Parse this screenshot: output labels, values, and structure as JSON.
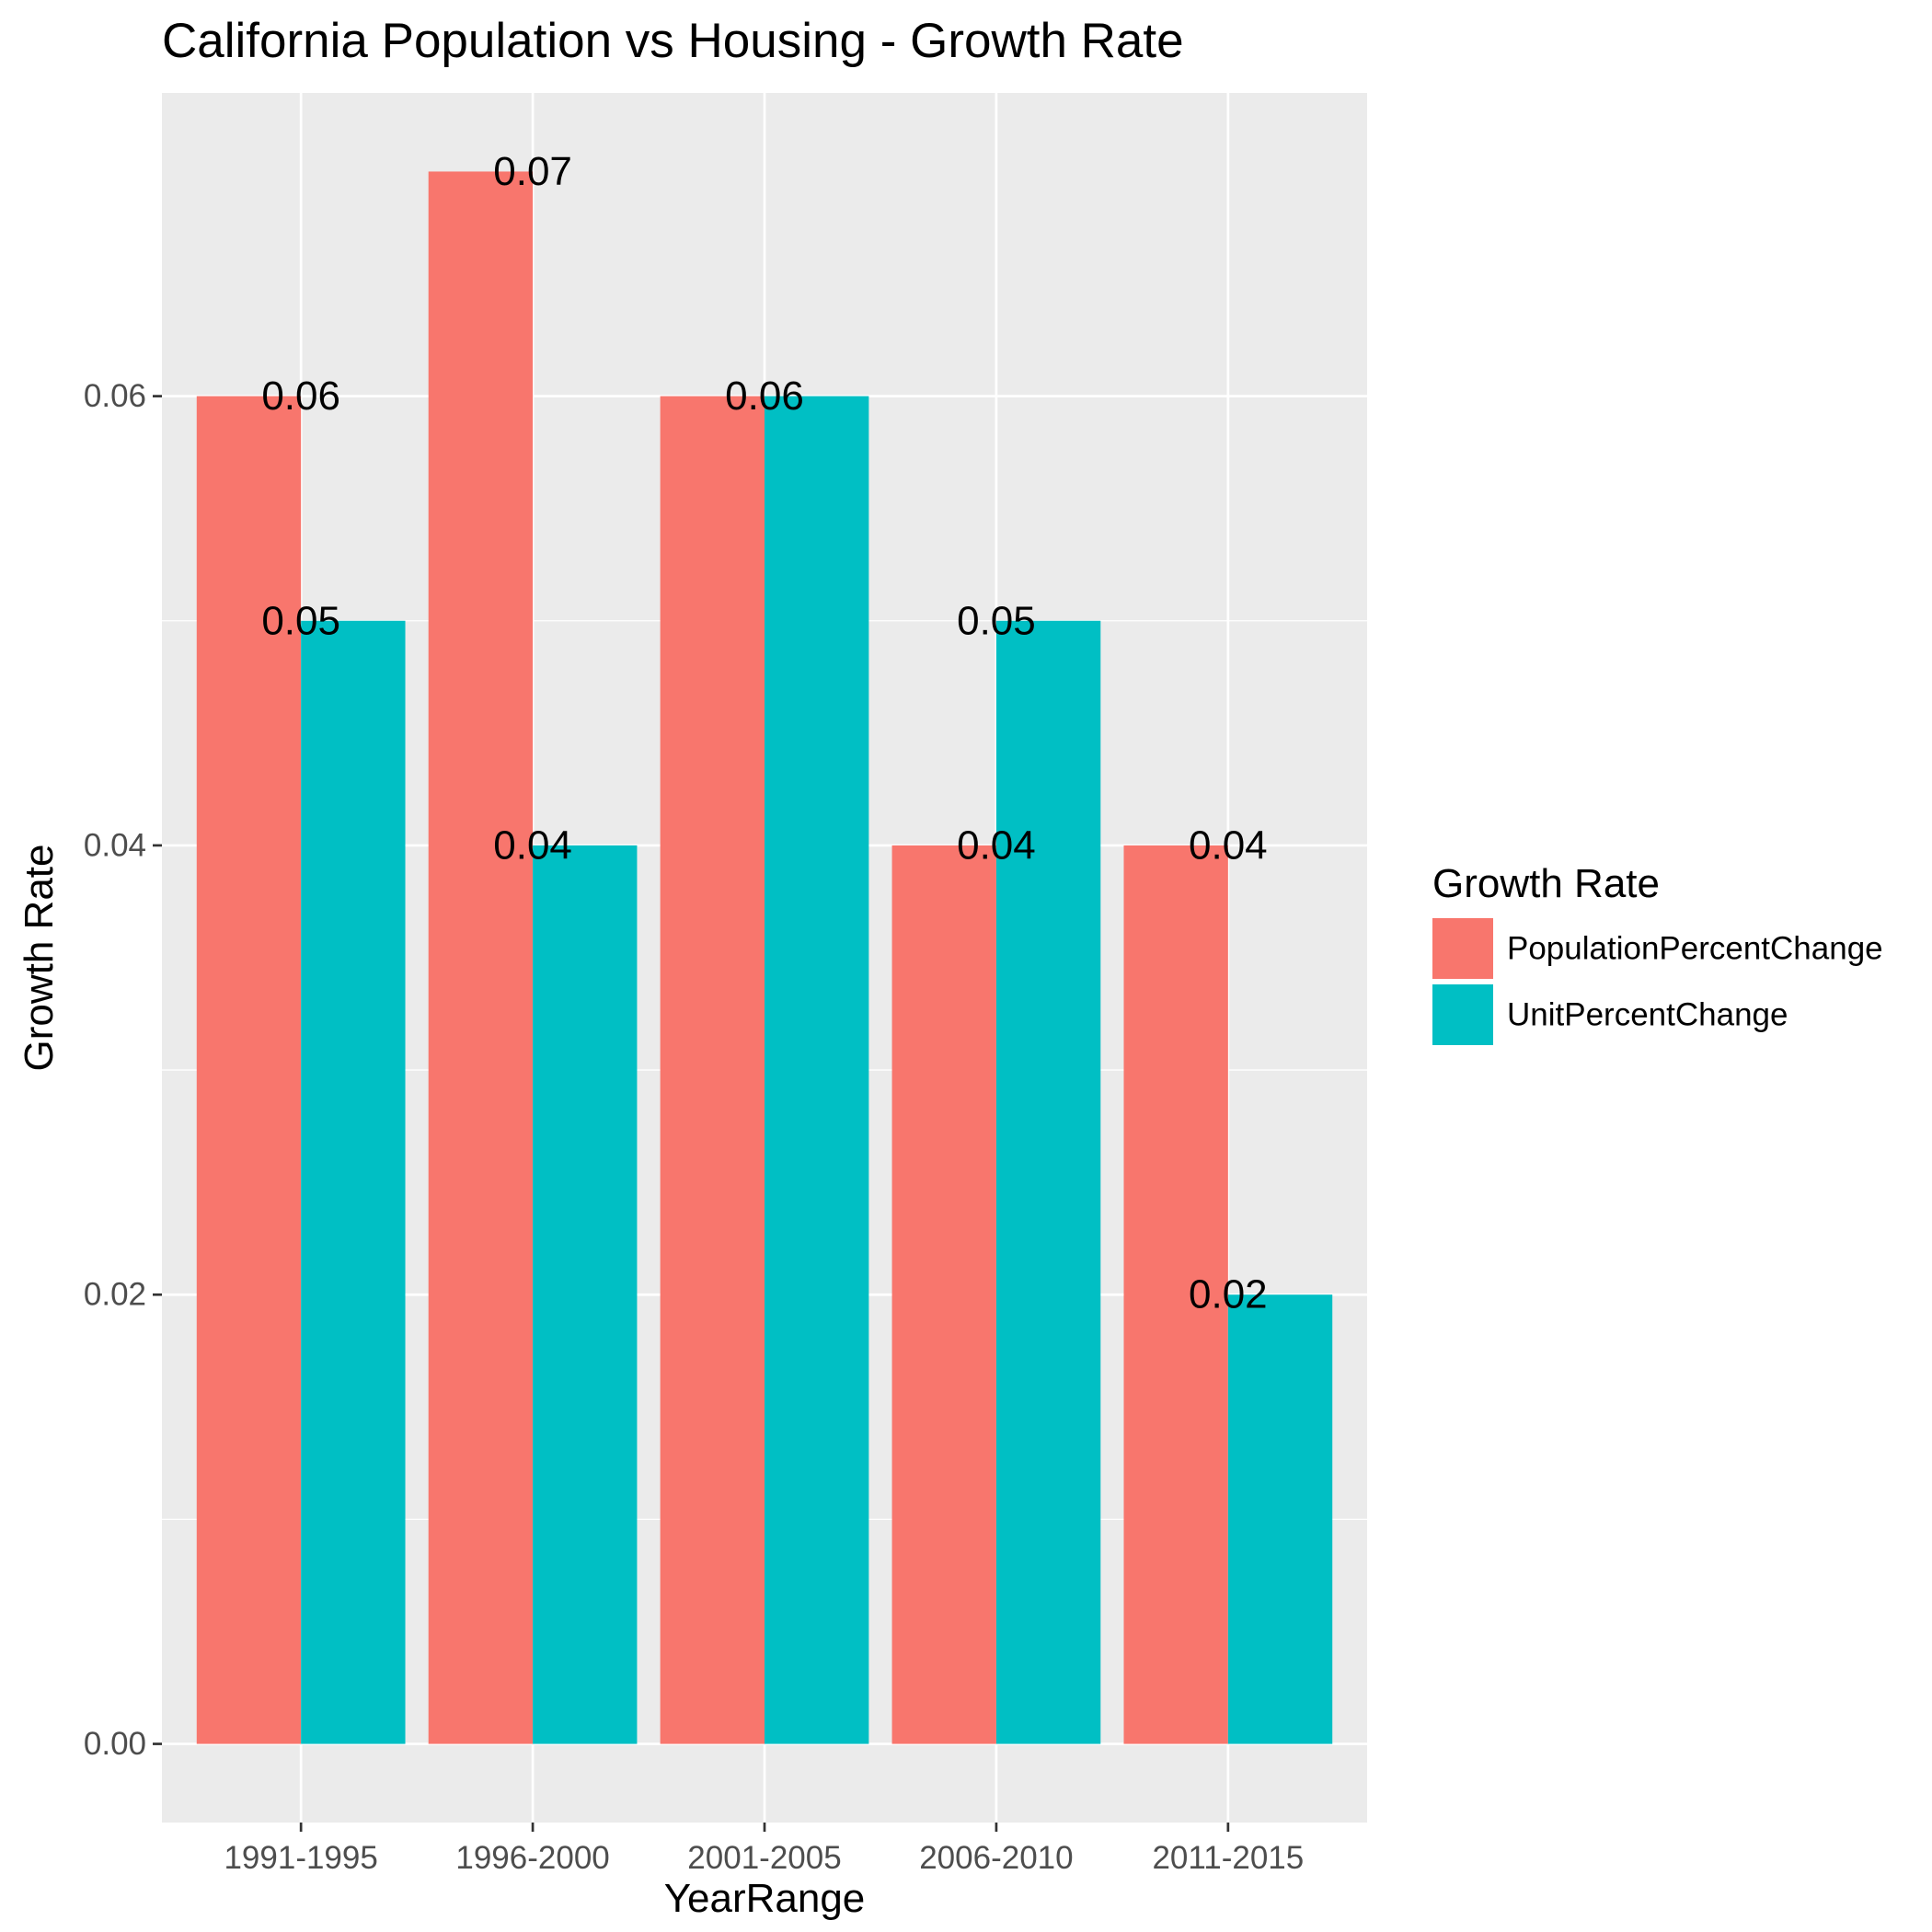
{
  "chart_data": {
    "type": "bar",
    "title": "California Population vs Housing - Growth Rate",
    "xlabel": "YearRange",
    "ylabel": "Growth Rate",
    "categories": [
      "1991-1995",
      "1996-2000",
      "2001-2005",
      "2006-2010",
      "2011-2015"
    ],
    "series": [
      {
        "name": "PopulationPercentChange",
        "color": "#F8766D",
        "values": [
          0.06,
          0.07,
          0.06,
          0.04,
          0.04
        ],
        "labels": [
          "0.06",
          "0.07",
          "",
          "0.04",
          "0.04"
        ]
      },
      {
        "name": "UnitPercentChange",
        "color": "#00BFC4",
        "values": [
          0.05,
          0.04,
          0.06,
          0.05,
          0.02
        ],
        "labels": [
          "0.05",
          "0.04",
          "0.06",
          "0.05",
          "0.02"
        ]
      }
    ],
    "ylim": [
      -0.0035,
      0.0735
    ],
    "yticks": [
      0.0,
      0.02,
      0.04,
      0.06
    ],
    "ytick_labels": [
      "0.00",
      "0.02",
      "0.04",
      "0.06"
    ],
    "legend": {
      "title": "Growth Rate",
      "position": "right"
    },
    "grid": true,
    "panel_color": "#EBEBEB"
  }
}
